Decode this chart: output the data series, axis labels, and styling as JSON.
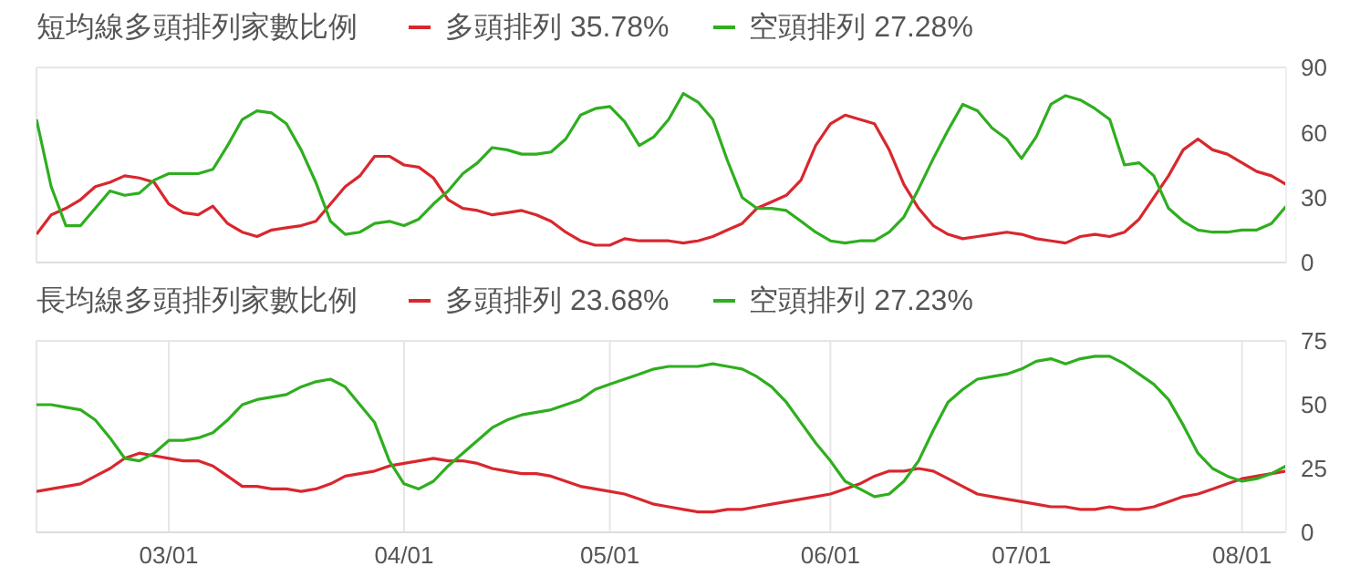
{
  "chart_data": [
    {
      "type": "line",
      "title": "短均線多頭排列家數比例",
      "legend": "top",
      "grid": true,
      "marker": "none",
      "tick_labels": "y",
      "categories": [
        null,
        null,
        null,
        null,
        null,
        null,
        null,
        null,
        null,
        null,
        null,
        null,
        null,
        null,
        null,
        null,
        null,
        null,
        null,
        null,
        null,
        null,
        null,
        null,
        null,
        null,
        null,
        null,
        null,
        null,
        null,
        null,
        null,
        null,
        null,
        null,
        null,
        null,
        null,
        null,
        null,
        null,
        null,
        null,
        null,
        null,
        null,
        null,
        null,
        null,
        null,
        null,
        null,
        null,
        null,
        null,
        null,
        null,
        null,
        null,
        null,
        null,
        null,
        null,
        null,
        null,
        null,
        null,
        null,
        null,
        null,
        null,
        null,
        null,
        null,
        null,
        null,
        null,
        null,
        null,
        null,
        null,
        null,
        null,
        null,
        null
      ],
      "ylim": [
        0,
        90
      ],
      "yticks": [
        0,
        30,
        60,
        90
      ],
      "series": [
        {
          "name": "多頭排列 35.78%",
          "color": "#d9272e",
          "values": [
            13,
            22,
            25,
            29,
            35,
            37,
            40,
            39,
            37,
            27,
            23,
            22,
            26,
            18,
            14,
            12,
            15,
            16,
            17,
            19,
            27,
            35,
            40,
            49,
            49,
            45,
            44,
            39,
            29,
            25,
            24,
            22,
            23,
            24,
            22,
            19,
            14,
            10,
            8,
            8,
            11,
            10,
            10,
            10,
            9,
            10,
            12,
            15,
            18,
            25,
            28,
            31,
            38,
            54,
            64,
            68,
            66,
            64,
            52,
            36,
            25,
            17,
            13,
            11,
            12,
            13,
            14,
            13,
            11,
            10,
            9,
            12,
            13,
            12,
            14,
            20,
            30,
            40,
            52,
            57,
            52,
            50,
            46,
            42,
            40,
            36
          ]
        },
        {
          "name": "空頭排列 27.28%",
          "color": "#2fae1f",
          "values": [
            66,
            35,
            17,
            17,
            25,
            33,
            31,
            32,
            38,
            41,
            41,
            41,
            43,
            54,
            66,
            70,
            69,
            64,
            52,
            37,
            19,
            13,
            14,
            18,
            19,
            17,
            20,
            27,
            33,
            41,
            46,
            53,
            52,
            50,
            50,
            51,
            57,
            68,
            71,
            72,
            65,
            54,
            58,
            66,
            78,
            74,
            66,
            47,
            30,
            25,
            25,
            24,
            19,
            14,
            10,
            9,
            10,
            10,
            14,
            21,
            34,
            48,
            61,
            73,
            70,
            62,
            57,
            48,
            58,
            73,
            77,
            75,
            71,
            66,
            45,
            46,
            40,
            25,
            19,
            15,
            14,
            14,
            15,
            15,
            18,
            26
          ]
        }
      ]
    },
    {
      "type": "line",
      "title": "長均線多頭排列家數比例",
      "legend": "top",
      "grid": true,
      "marker": "none",
      "categories": [
        null,
        null,
        null,
        null,
        null,
        null,
        null,
        null,
        null,
        "03/01",
        null,
        null,
        null,
        null,
        null,
        null,
        null,
        null,
        null,
        null,
        null,
        null,
        null,
        null,
        null,
        "04/01",
        null,
        null,
        null,
        null,
        null,
        null,
        null,
        null,
        null,
        null,
        null,
        null,
        null,
        "05/01",
        null,
        null,
        null,
        null,
        null,
        null,
        null,
        null,
        null,
        null,
        null,
        null,
        null,
        null,
        "06/01",
        null,
        null,
        null,
        null,
        null,
        null,
        null,
        null,
        null,
        null,
        null,
        null,
        "07/01",
        null,
        null,
        null,
        null,
        null,
        null,
        null,
        null,
        null,
        null,
        null,
        null,
        null,
        null,
        "08/01",
        null,
        null,
        null
      ],
      "ylim": [
        0,
        75
      ],
      "yticks": [
        0,
        25,
        50,
        75
      ],
      "series": [
        {
          "name": "多頭排列 23.68%",
          "color": "#d9272e",
          "values": [
            16,
            17,
            18,
            19,
            22,
            25,
            29,
            31,
            30,
            29,
            28,
            28,
            26,
            22,
            18,
            18,
            17,
            17,
            16,
            17,
            19,
            22,
            23,
            24,
            26,
            27,
            28,
            29,
            28,
            28,
            27,
            25,
            24,
            23,
            23,
            22,
            20,
            18,
            17,
            16,
            15,
            13,
            11,
            10,
            9,
            8,
            8,
            9,
            9,
            10,
            11,
            12,
            13,
            14,
            15,
            17,
            19,
            22,
            24,
            24,
            25,
            24,
            21,
            18,
            15,
            14,
            13,
            12,
            11,
            10,
            10,
            9,
            9,
            10,
            9,
            9,
            10,
            12,
            14,
            15,
            17,
            19,
            21,
            22,
            23,
            24
          ]
        },
        {
          "name": "空頭排列 27.23%",
          "color": "#2fae1f",
          "values": [
            50,
            50,
            49,
            48,
            44,
            37,
            29,
            28,
            31,
            36,
            36,
            37,
            39,
            44,
            50,
            52,
            53,
            54,
            57,
            59,
            60,
            57,
            50,
            43,
            28,
            19,
            17,
            20,
            26,
            31,
            36,
            41,
            44,
            46,
            47,
            48,
            50,
            52,
            56,
            58,
            60,
            62,
            64,
            65,
            65,
            65,
            66,
            65,
            64,
            61,
            57,
            51,
            43,
            35,
            28,
            20,
            17,
            14,
            15,
            20,
            28,
            40,
            51,
            56,
            60,
            61,
            62,
            64,
            67,
            68,
            66,
            68,
            69,
            69,
            66,
            62,
            58,
            52,
            42,
            31,
            25,
            22,
            20,
            21,
            23,
            26
          ]
        }
      ]
    }
  ]
}
